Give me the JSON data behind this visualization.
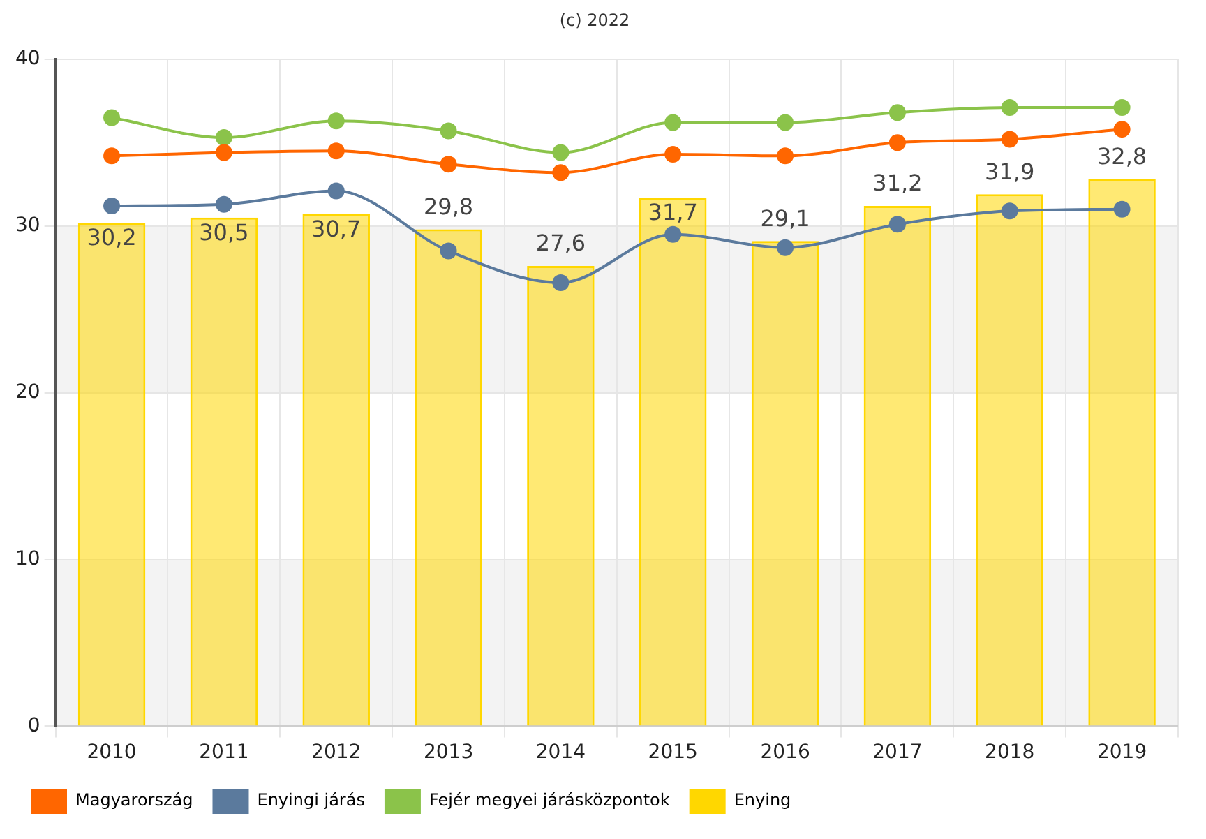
{
  "chart_data": {
    "type": "bar",
    "title": "(c) 2022",
    "categories": [
      "2010",
      "2011",
      "2012",
      "2013",
      "2014",
      "2015",
      "2016",
      "2017",
      "2018",
      "2019"
    ],
    "series": [
      {
        "name": "Magyarország",
        "type": "line",
        "color": "#ff6600",
        "values": [
          34.2,
          34.4,
          34.5,
          33.7,
          33.2,
          34.3,
          34.2,
          35.0,
          35.2,
          35.8
        ]
      },
      {
        "name": "Enyingi járás",
        "type": "line",
        "color": "#5b7a9d",
        "values": [
          31.2,
          31.3,
          32.1,
          28.5,
          26.6,
          29.5,
          28.7,
          30.1,
          30.9,
          31.0
        ]
      },
      {
        "name": "Fejér megyei járásközpontok",
        "type": "line",
        "color": "#8bc34a",
        "values": [
          36.5,
          35.3,
          36.3,
          35.7,
          34.4,
          36.2,
          36.2,
          36.8,
          37.1,
          37.1
        ]
      },
      {
        "name": "Enying",
        "type": "bar",
        "color": "#ffd700",
        "values": [
          30.2,
          30.5,
          30.7,
          29.8,
          27.6,
          31.7,
          29.1,
          31.2,
          31.9,
          32.8
        ],
        "value_labels": [
          "30,2",
          "30,5",
          "30,7",
          "29,8",
          "27,6",
          "31,7",
          "29,1",
          "31,2",
          "31,9",
          "32,8"
        ]
      }
    ],
    "ylim": [
      0,
      40
    ],
    "yticks": [
      0,
      10,
      20,
      30,
      40
    ],
    "grid": true,
    "legend": "bottom",
    "marker": "circle"
  }
}
